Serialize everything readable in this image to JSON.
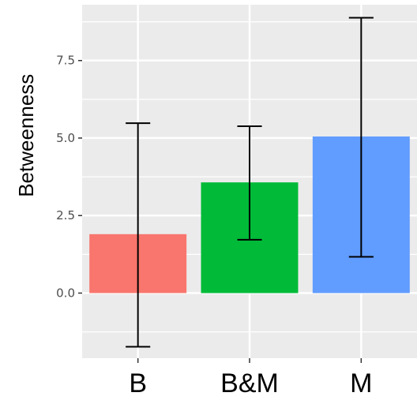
{
  "chart_data": {
    "type": "bar",
    "title": "",
    "xlabel": "",
    "ylabel": "Betweenness",
    "categories": [
      "B",
      "B&M",
      "M"
    ],
    "values": [
      1.9,
      3.57,
      5.05
    ],
    "error_low": [
      -1.73,
      1.72,
      1.17
    ],
    "error_high": [
      5.48,
      5.38,
      8.88
    ],
    "colors": [
      "#F8766D",
      "#00BA38",
      "#619CFF"
    ],
    "ylim": [
      -2.1,
      9.3
    ],
    "yticks": [
      0.0,
      2.5,
      5.0,
      7.5
    ],
    "ytick_labels": [
      "0.0",
      "2.5",
      "5.0",
      "7.5"
    ],
    "grid": true,
    "legend": "none",
    "panel_background": "#EBEBEB",
    "gridline_color": "#FFFFFF"
  }
}
